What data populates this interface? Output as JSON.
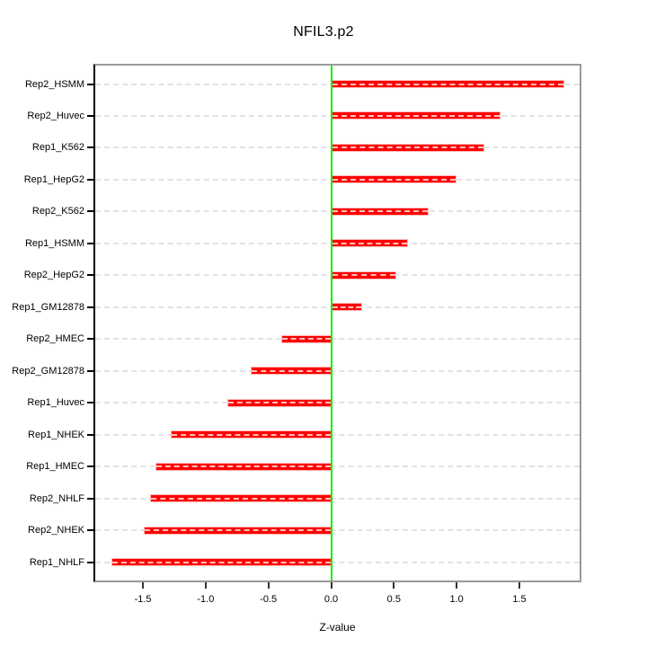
{
  "chart_data": {
    "type": "bar",
    "orientation": "horizontal",
    "title": "NFIL3.p2",
    "xlabel": "Z-value",
    "ylabel": "",
    "xlim": [
      -1.88,
      1.98
    ],
    "grid": "horizontal-dashed",
    "zero_reference_line": 0,
    "categories": [
      "Rep2_HSMM",
      "Rep2_Huvec",
      "Rep1_K562",
      "Rep1_HepG2",
      "Rep2_K562",
      "Rep1_HSMM",
      "Rep2_HepG2",
      "Rep1_GM12878",
      "Rep2_HMEC",
      "Rep2_GM12878",
      "Rep1_Huvec",
      "Rep1_NHEK",
      "Rep1_HMEC",
      "Rep2_NHLF",
      "Rep2_NHEK",
      "Rep1_NHLF"
    ],
    "values": [
      1.86,
      1.35,
      1.22,
      1.0,
      0.78,
      0.61,
      0.52,
      0.25,
      -0.4,
      -0.64,
      -0.83,
      -1.28,
      -1.4,
      -1.44,
      -1.49,
      -1.75
    ],
    "x_ticks": {
      "values": [
        -1.5,
        -1.0,
        -0.5,
        0.0,
        0.5,
        1.0,
        1.5
      ],
      "labels": [
        "-1.5",
        "-1.0",
        "-0.5",
        "0.0",
        "0.5",
        "1.0",
        "1.5"
      ]
    },
    "colors": {
      "bar_fill": "#ff0000",
      "bar_border": "#ffb9b9",
      "zero_line": "#00ee00",
      "gridline": "#e2e2e2",
      "plot_border": "#999999",
      "left_axis": "#000000",
      "text": "#000000",
      "background": "#ffffff"
    }
  }
}
